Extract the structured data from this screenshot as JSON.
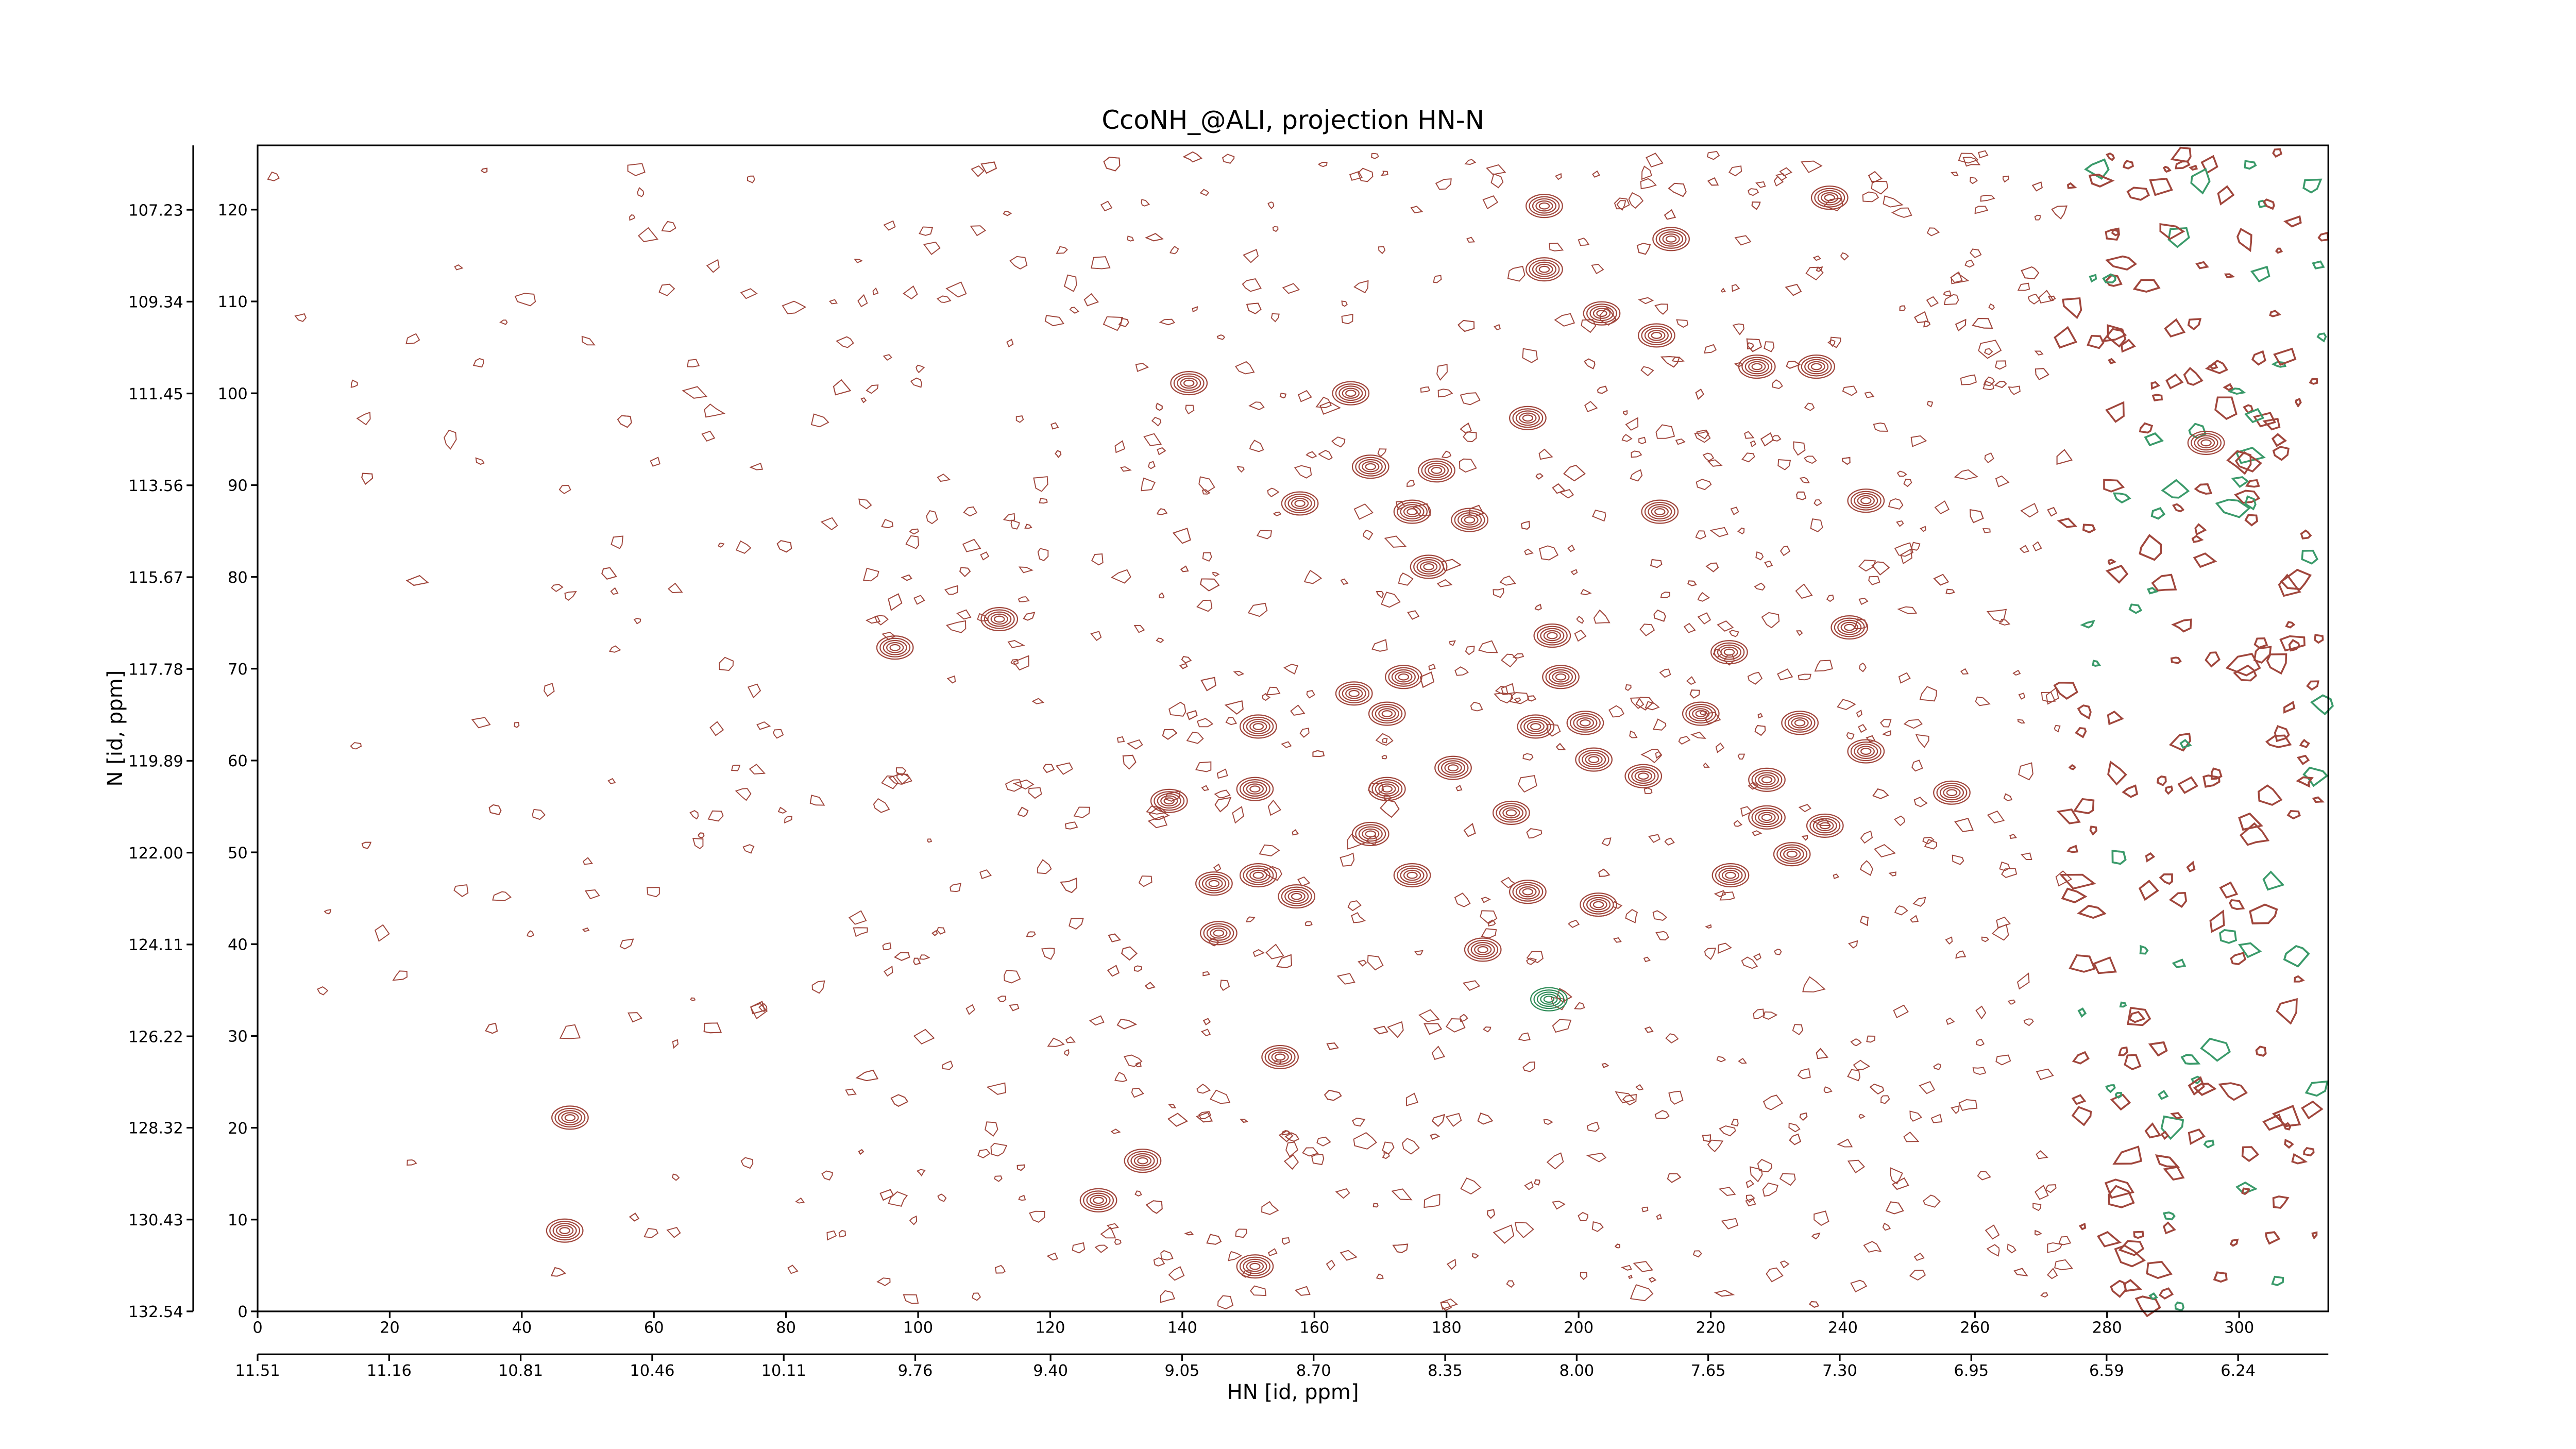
{
  "chart_data": {
    "type": "contour",
    "title": "CcoNH_@ALI, projection HN-N",
    "xlabel": "HN [id, ppm]",
    "ylabel": "N [id, ppm]",
    "xlim": [
      0,
      313.5
    ],
    "xticks": [
      0,
      20,
      40,
      60,
      80,
      100,
      120,
      140,
      160,
      180,
      200,
      220,
      240,
      260,
      280,
      300
    ],
    "x2lim": [
      11.51,
      6.0
    ],
    "x2ticks": [
      11.51,
      11.16,
      10.81,
      10.46,
      10.11,
      9.76,
      {
        "value": 9.4,
        "label": "9.40"
      },
      9.05,
      {
        "value": 8.7,
        "label": "8.70"
      },
      8.35,
      {
        "value": 8.0,
        "label": "8.00"
      },
      7.65,
      {
        "value": 7.3,
        "label": "7.30"
      },
      6.95,
      6.59,
      6.24
    ],
    "ylim": [
      0,
      127
    ],
    "yticks": [
      0,
      10,
      20,
      30,
      40,
      50,
      60,
      70,
      80,
      90,
      100,
      110,
      120
    ],
    "y2lim": [
      132.54,
      105.75
    ],
    "y2ticks": [
      132.54,
      130.43,
      128.32,
      126.22,
      124.11,
      {
        "value": 122.0,
        "label": "122.00"
      },
      119.89,
      117.78,
      115.67,
      113.56,
      111.45,
      109.34,
      107.23
    ],
    "series": [
      {
        "color": "#a0463c",
        "x": [
          194.8,
          194.8,
          238,
          203.5,
          211.8,
          214,
          227,
          236,
          141,
          165.5,
          192.3,
          295,
          157.8,
          168.5,
          174.8,
          178.5,
          183.5,
          177.3,
          212.3,
          243.5,
          96.5,
          112.3,
          222.8,
          241,
          196,
          166,
          173.5,
          171,
          197.3,
          151.5,
          193.5,
          201,
          218.5,
          233.5,
          243.5,
          181,
          138,
          151,
          171,
          189.8,
          202.3,
          209.8,
          228.5,
          228.5,
          237.3,
          232.3,
          256.5,
          168.5,
          174.8,
          144.8,
          151.5,
          157.3,
          223,
          192.3,
          203,
          145.5,
          185.5,
          154.8,
          47.3,
          134,
          127.3,
          151,
          46.5
        ],
        "y": [
          120.4,
          113.5,
          121.3,
          108.7,
          106.3,
          116.8,
          102.9,
          102.9,
          101.1,
          100,
          97.3,
          94.6,
          88,
          92,
          87.1,
          91.6,
          86.2,
          81.1,
          87.1,
          88.3,
          72.3,
          75.4,
          71.8,
          74.5,
          73.6,
          67.3,
          69.1,
          65.1,
          69.1,
          63.7,
          63.7,
          64.1,
          65.1,
          64.1,
          61,
          59.2,
          55.6,
          56.9,
          56.9,
          54.3,
          60.1,
          58.3,
          57.9,
          53.8,
          52.9,
          49.8,
          56.5,
          52,
          47.5,
          46.6,
          47.5,
          45.2,
          47.5,
          45.7,
          44.3,
          41.2,
          39.4,
          27.7,
          21.1,
          16.4,
          12.1,
          4.9,
          8.8
        ]
      },
      {
        "color": "#2e8b57",
        "x": [
          195.5
        ],
        "y": [
          34
        ]
      }
    ]
  }
}
